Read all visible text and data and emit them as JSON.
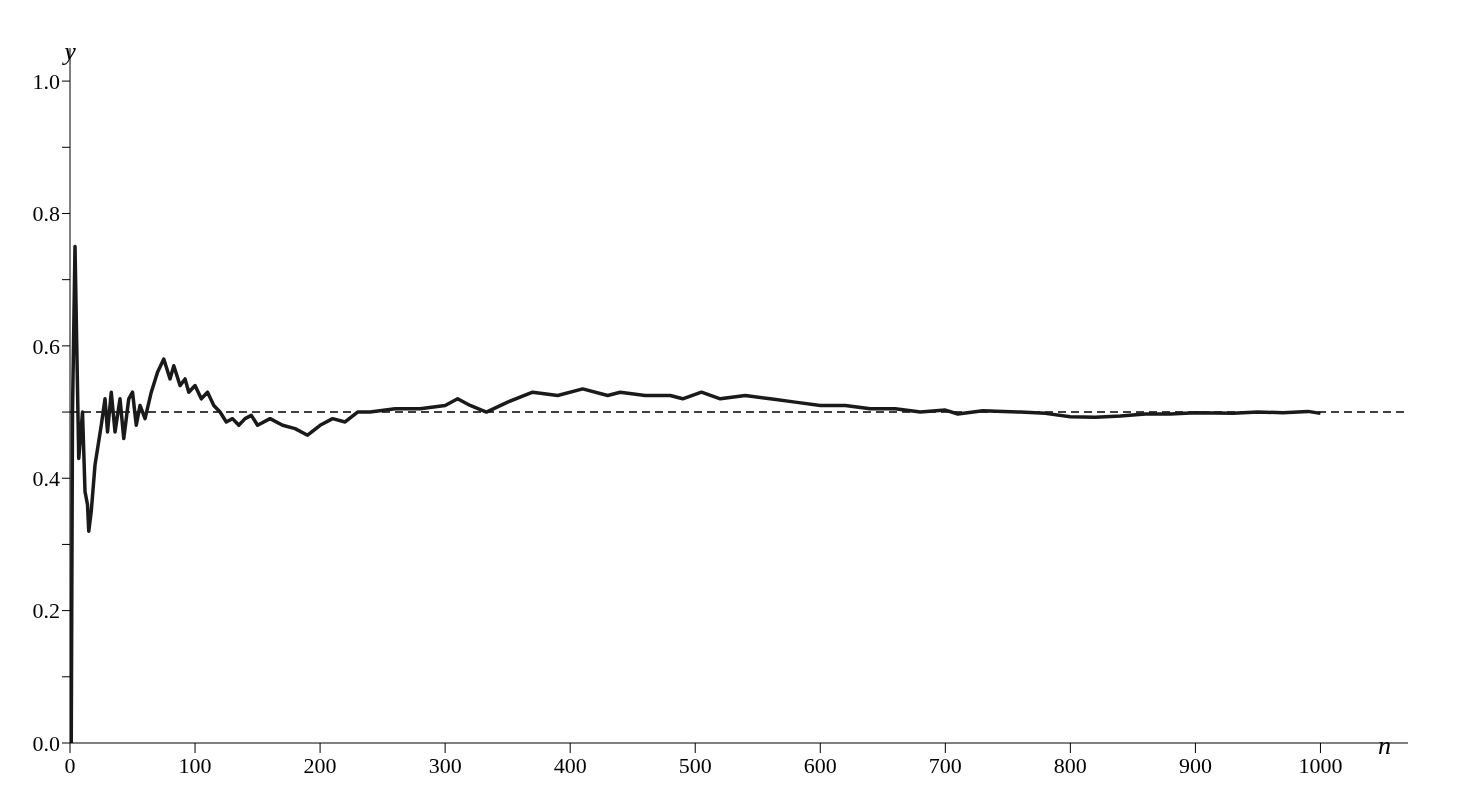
{
  "chart_data": {
    "type": "line",
    "xlabel": "n",
    "ylabel": "y",
    "xlim": [
      0,
      1070
    ],
    "xticks": [
      0,
      100,
      200,
      300,
      400,
      500,
      600,
      700,
      800,
      900,
      1000
    ],
    "ylim": [
      0,
      1.05
    ],
    "yticks": [
      {
        "value": 0,
        "label": "0.0"
      },
      {
        "value": 0.1,
        "label": null
      },
      {
        "value": 0.2,
        "label": "0.2"
      },
      {
        "value": 0.3,
        "label": null
      },
      {
        "value": 0.4,
        "label": "0.4"
      },
      {
        "value": 0.5,
        "label": null
      },
      {
        "value": 0.6,
        "label": "0.6"
      },
      {
        "value": 0.7,
        "label": null
      },
      {
        "value": 0.8,
        "label": "0.8"
      },
      {
        "value": 0.9,
        "label": null
      },
      {
        "value": 1.0,
        "label": "1.0"
      }
    ],
    "marker": "none",
    "line_style": "solid",
    "ref_lines": [
      {
        "axis": "y",
        "value": 0.5,
        "color": "#000000",
        "line_style": "dashed"
      }
    ],
    "series": [
      {
        "color": "#1a1a1a",
        "x": [
          1,
          2,
          4,
          7,
          10,
          12,
          14,
          15,
          17,
          20,
          25,
          28,
          30,
          33,
          36,
          40,
          43,
          47,
          50,
          53,
          56,
          60,
          65,
          70,
          75,
          80,
          83,
          88,
          92,
          95,
          100,
          105,
          110,
          115,
          120,
          125,
          130,
          135,
          140,
          145,
          150,
          160,
          170,
          180,
          190,
          200,
          210,
          220,
          230,
          240,
          260,
          280,
          300,
          310,
          320,
          333,
          350,
          370,
          390,
          410,
          430,
          440,
          460,
          480,
          490,
          505,
          520,
          540,
          560,
          580,
          600,
          620,
          640,
          660,
          680,
          700,
          710,
          730,
          760,
          780,
          800,
          820,
          840,
          860,
          880,
          900,
          930,
          950,
          970,
          990,
          1000
        ],
        "values": [
          0,
          0.5,
          0.75,
          0.43,
          0.5,
          0.38,
          0.36,
          0.32,
          0.35,
          0.42,
          0.48,
          0.52,
          0.47,
          0.53,
          0.47,
          0.52,
          0.46,
          0.52,
          0.53,
          0.48,
          0.51,
          0.49,
          0.53,
          0.56,
          0.58,
          0.55,
          0.57,
          0.54,
          0.55,
          0.53,
          0.54,
          0.52,
          0.53,
          0.51,
          0.5,
          0.485,
          0.49,
          0.48,
          0.49,
          0.495,
          0.48,
          0.49,
          0.48,
          0.475,
          0.465,
          0.48,
          0.49,
          0.485,
          0.5,
          0.5,
          0.505,
          0.505,
          0.51,
          0.52,
          0.51,
          0.5,
          0.515,
          0.53,
          0.525,
          0.535,
          0.525,
          0.53,
          0.525,
          0.525,
          0.52,
          0.53,
          0.52,
          0.525,
          0.52,
          0.515,
          0.51,
          0.51,
          0.505,
          0.505,
          0.5,
          0.503,
          0.497,
          0.502,
          0.5,
          0.498,
          0.493,
          0.492,
          0.494,
          0.497,
          0.497,
          0.499,
          0.498,
          0.5,
          0.499,
          0.501,
          0.498
        ]
      }
    ]
  }
}
